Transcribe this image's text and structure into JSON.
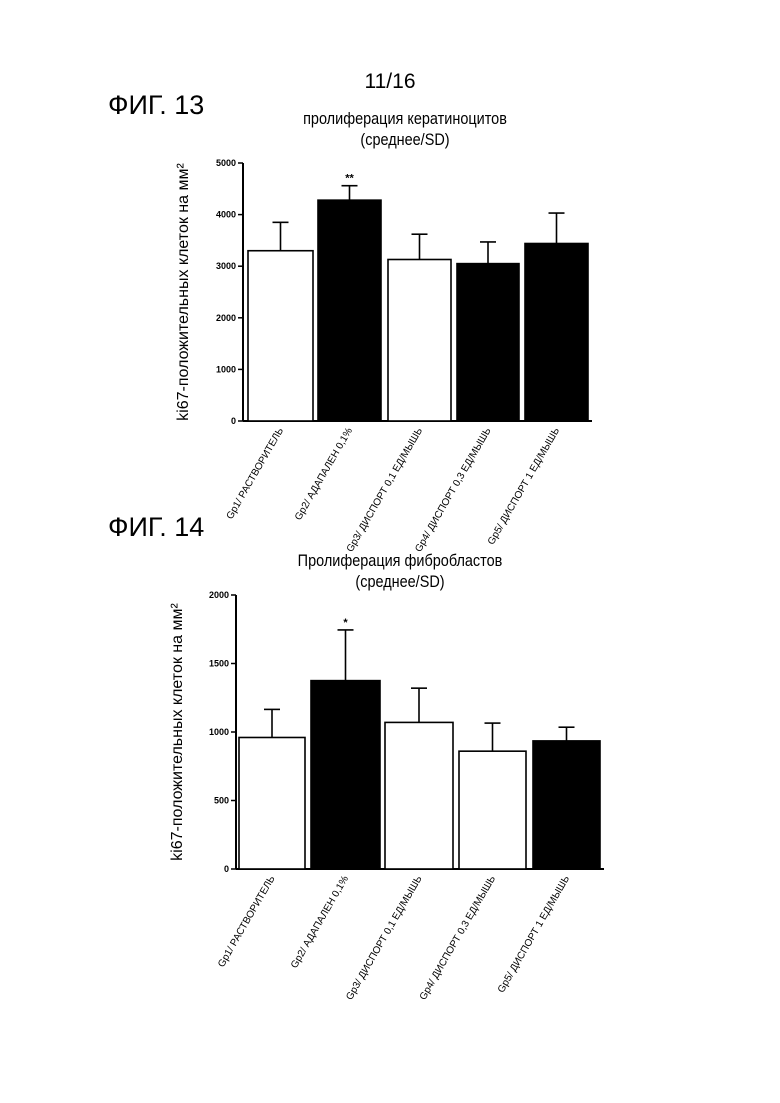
{
  "page": {
    "number": "11/16"
  },
  "figures": [
    {
      "label": "ФИГ. 13"
    },
    {
      "label": "ФИГ. 14"
    }
  ],
  "chart_data": [
    {
      "type": "bar",
      "title": "пролиферация кератиноцитов",
      "subtitle": "(среднее/SD)",
      "ylabel": "ki67-положительных клеток на мм²",
      "ylim": [
        0,
        5000
      ],
      "yticks": [
        "0",
        "1000",
        "2000",
        "3000",
        "4000",
        "5000"
      ],
      "categories": [
        "Gp1/ РАСТВОРИТЕЛЬ",
        "Gp2/ АДАПАЛЕН 0,1%",
        "Gp3/ ДИСПОРТ 0,1 ЕД/МЫШЬ",
        "Gp4/ ДИСПОРТ 0,3 ЕД/МЫШЬ",
        "Gp5/ ДИСПОРТ 1 ЕД/МЫШЬ"
      ],
      "values": [
        3300,
        4280,
        3130,
        3050,
        3440
      ],
      "errors": [
        550,
        280,
        490,
        420,
        590
      ],
      "significance": [
        "",
        "**",
        "",
        "",
        ""
      ],
      "bar_colors": [
        "#ffffff",
        "#000000",
        "#ffffff",
        "#000000",
        "#000000"
      ]
    },
    {
      "type": "bar",
      "title": "Пролиферация фибробластов",
      "subtitle": "(среднее/SD)",
      "ylabel": "ki67-положительных клеток на мм²",
      "ylim": [
        0,
        2000
      ],
      "yticks": [
        "0",
        "500",
        "1000",
        "1500",
        "2000"
      ],
      "categories": [
        "Gp1/ РАСТВОРИТЕЛЬ",
        "Gp2/ АДАПАЛЕН 0,1%",
        "Gp3/ ДИСПОРТ 0,1 ЕД/МЫШЬ",
        "Gp4/ ДИСПОРТ 0,3 ЕД/МЫШЬ",
        "Gp5/ ДИСПОРТ 1 ЕД/МЫШЬ"
      ],
      "values": [
        960,
        1375,
        1070,
        860,
        935
      ],
      "errors": [
        205,
        370,
        250,
        205,
        100
      ],
      "significance": [
        "",
        "*",
        "",
        "",
        ""
      ],
      "bar_colors": [
        "#ffffff",
        "#000000",
        "#ffffff",
        "#ffffff",
        "#000000"
      ]
    }
  ]
}
